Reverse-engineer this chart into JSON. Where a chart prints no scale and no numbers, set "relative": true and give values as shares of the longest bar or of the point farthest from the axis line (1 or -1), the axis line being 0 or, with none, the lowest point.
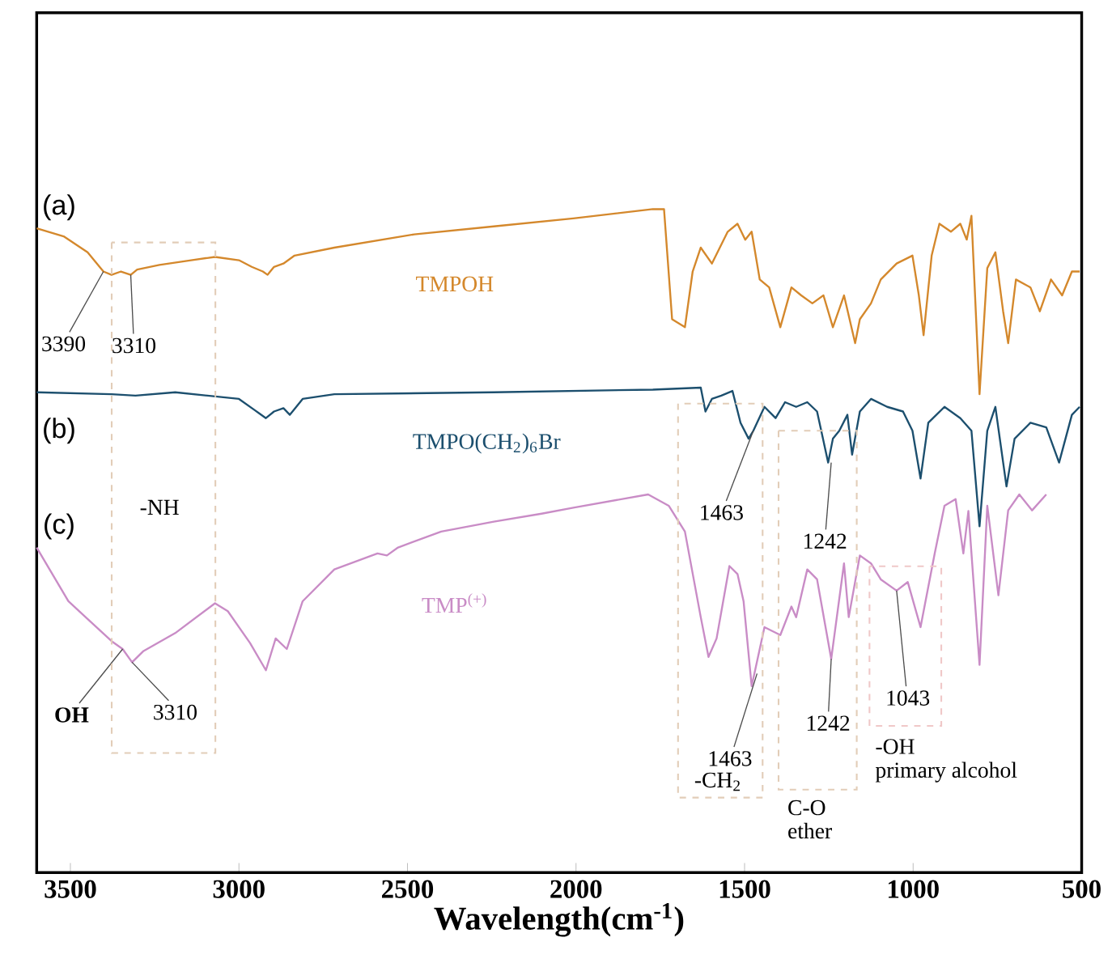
{
  "chart_data": {
    "type": "line",
    "relative": true,
    "xlabel": "Wavelength(cm$^{-1}$)",
    "xlim": [
      3600,
      500
    ],
    "xticks": [
      3500,
      3000,
      2500,
      2000,
      1500,
      1000,
      500
    ],
    "grid": false,
    "marker": "none",
    "line_style": "solid",
    "series": [
      {
        "name": "TMPOH",
        "color": "#d4882c",
        "x": [
          3600,
          3520,
          3449,
          3402,
          3378,
          3350,
          3321,
          3302,
          3236,
          3142,
          3071,
          3000,
          2962,
          2929,
          2915,
          2896,
          2868,
          2835,
          2717,
          2480,
          2244,
          2008,
          1772,
          1739,
          1715,
          1677,
          1654,
          1630,
          1597,
          1550,
          1521,
          1498,
          1479,
          1455,
          1427,
          1394,
          1361,
          1332,
          1299,
          1266,
          1238,
          1205,
          1172,
          1158,
          1125,
          1096,
          1049,
          1002,
          983,
          969,
          945,
          922,
          888,
          860,
          841,
          827,
          803,
          780,
          756,
          733,
          718,
          695,
          652,
          624,
          591,
          558,
          529,
          506
        ],
        "values": [
          0.971,
          0.959,
          0.935,
          0.906,
          0.901,
          0.906,
          0.901,
          0.909,
          0.916,
          0.923,
          0.928,
          0.923,
          0.913,
          0.906,
          0.901,
          0.913,
          0.918,
          0.93,
          0.942,
          0.962,
          0.974,
          0.986,
          1,
          1,
          0.834,
          0.822,
          0.906,
          0.942,
          0.918,
          0.966,
          0.978,
          0.954,
          0.966,
          0.894,
          0.882,
          0.822,
          0.882,
          0.87,
          0.858,
          0.87,
          0.822,
          0.87,
          0.798,
          0.834,
          0.858,
          0.894,
          0.918,
          0.93,
          0.87,
          0.81,
          0.93,
          0.978,
          0.966,
          0.978,
          0.954,
          0.99,
          0.721,
          0.911,
          0.935,
          0.846,
          0.798,
          0.894,
          0.882,
          0.846,
          0.894,
          0.87,
          0.906,
          0.906
        ]
      },
      {
        "name": "TMPO(CH$_{2}$)$_{6}$Br",
        "color": "#1c4f6e",
        "x": [
          3600,
          3378,
          3307,
          3189,
          3000,
          2953,
          2920,
          2896,
          2868,
          2849,
          2811,
          2717,
          2244,
          1772,
          1630,
          1616,
          1597,
          1569,
          1536,
          1512,
          1488,
          1474,
          1441,
          1408,
          1380,
          1347,
          1314,
          1285,
          1252,
          1238,
          1219,
          1195,
          1181,
          1158,
          1125,
          1077,
          1030,
          1002,
          978,
          955,
          907,
          860,
          827,
          803,
          780,
          756,
          723,
          699,
          652,
          605,
          567,
          529,
          506
        ],
        "values": [
          0.724,
          0.721,
          0.719,
          0.724,
          0.714,
          0.697,
          0.685,
          0.695,
          0.7,
          0.69,
          0.714,
          0.721,
          0.724,
          0.728,
          0.731,
          0.695,
          0.714,
          0.719,
          0.726,
          0.678,
          0.654,
          0.666,
          0.702,
          0.685,
          0.709,
          0.702,
          0.709,
          0.695,
          0.618,
          0.654,
          0.666,
          0.69,
          0.63,
          0.695,
          0.714,
          0.702,
          0.695,
          0.666,
          0.594,
          0.678,
          0.702,
          0.685,
          0.666,
          0.522,
          0.666,
          0.702,
          0.582,
          0.654,
          0.678,
          0.671,
          0.618,
          0.69,
          0.702
        ]
      },
      {
        "name": "TMP$^{(+)}$",
        "color": "#c98cc6",
        "x": [
          3600,
          3506,
          3378,
          3345,
          3317,
          3283,
          3189,
          3071,
          3033,
          2967,
          2920,
          2891,
          2858,
          2811,
          2717,
          2589,
          2561,
          2528,
          2400,
          2244,
          2102,
          2008,
          1786,
          1725,
          1677,
          1630,
          1607,
          1583,
          1545,
          1521,
          1503,
          1479,
          1441,
          1394,
          1361,
          1347,
          1314,
          1285,
          1243,
          1205,
          1191,
          1158,
          1125,
          1096,
          1049,
          1016,
          978,
          936,
          907,
          874,
          851,
          836,
          803,
          780,
          747,
          718,
          685,
          647,
          605
        ],
        "values": [
          0.49,
          0.409,
          0.349,
          0.337,
          0.317,
          0.334,
          0.361,
          0.406,
          0.394,
          0.346,
          0.305,
          0.353,
          0.337,
          0.409,
          0.457,
          0.481,
          0.478,
          0.49,
          0.514,
          0.529,
          0.541,
          0.55,
          0.57,
          0.553,
          0.514,
          0.385,
          0.325,
          0.353,
          0.462,
          0.45,
          0.409,
          0.281,
          0.37,
          0.358,
          0.401,
          0.385,
          0.457,
          0.442,
          0.322,
          0.466,
          0.385,
          0.478,
          0.466,
          0.442,
          0.425,
          0.438,
          0.37,
          0.481,
          0.553,
          0.563,
          0.481,
          0.545,
          0.313,
          0.553,
          0.418,
          0.546,
          0.57,
          0.546,
          0.57
        ]
      }
    ],
    "annotations": [
      "(a)",
      "(b)",
      "(c)",
      "primary alcohol",
      "-NH",
      "-CH$_{2}$",
      "C-O ether",
      "-OH",
      {
        "text": "3390",
        "x": 3402,
        "y": 0.906
      },
      {
        "text": "3310",
        "x": 3321,
        "y": 0.901
      },
      {
        "text": "1463",
        "x": 1474,
        "y": 0.666
      },
      {
        "text": "1242",
        "x": 1243,
        "y": 0.618
      },
      {
        "text": "OH",
        "x": 3345,
        "y": 0.337
      },
      {
        "text": "3310",
        "x": 3317,
        "y": 0.317
      },
      {
        "text": "1463",
        "x": 1463,
        "y": 0.3
      },
      {
        "text": "1242",
        "x": 1243,
        "y": 0.322
      },
      {
        "text": "1043",
        "x": 1049,
        "y": 0.425
      }
    ]
  }
}
